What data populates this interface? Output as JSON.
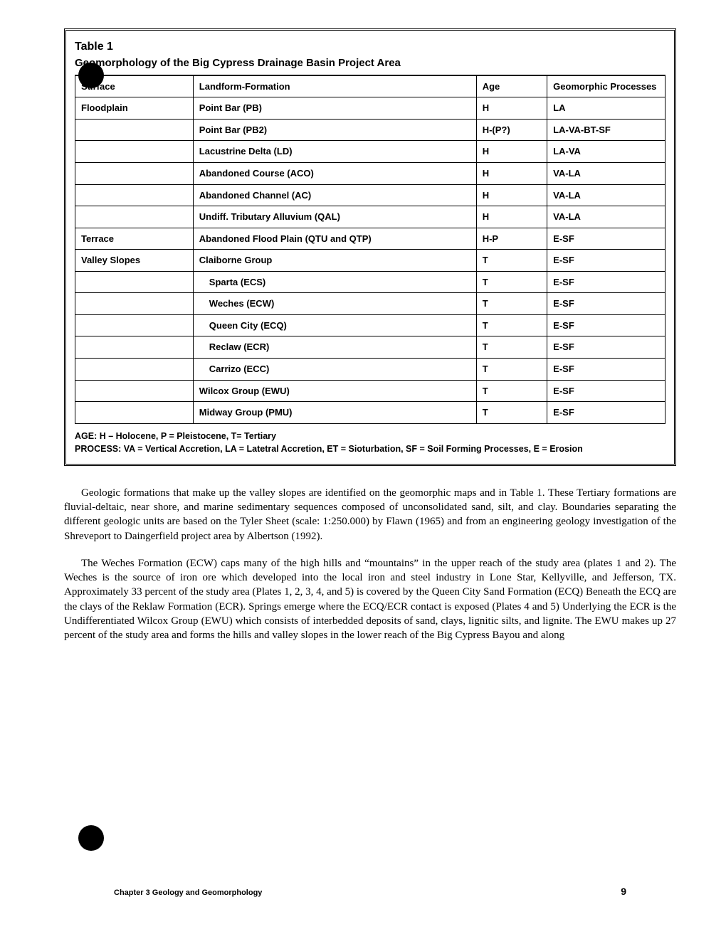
{
  "table": {
    "title": "Table 1",
    "subtitle": "Geomorphology of the Big Cypress Drainage Basin Project Area",
    "headers": {
      "surface": "Surface",
      "lf": "Landform-Formation",
      "age": "Age",
      "proc": "Geomorphic Processes"
    },
    "rows": [
      {
        "surface": "Floodplain",
        "lf": "Point Bar (PB)",
        "age": "H",
        "proc": "LA",
        "indent": false
      },
      {
        "surface": "",
        "lf": "Point Bar  (PB2)",
        "age": "H-(P?)",
        "proc": "LA-VA-BT-SF",
        "indent": false
      },
      {
        "surface": "",
        "lf": "Lacustrine Delta (LD)",
        "age": "H",
        "proc": "LA-VA",
        "indent": false
      },
      {
        "surface": "",
        "lf": "Abandoned Course (ACO)",
        "age": "H",
        "proc": "VA-LA",
        "indent": false
      },
      {
        "surface": "",
        "lf": "Abandoned Channel (AC)",
        "age": "H",
        "proc": "VA-LA",
        "indent": false
      },
      {
        "surface": "",
        "lf": "Undiff. Tributary Alluvium (QAL)",
        "age": "H",
        "proc": "VA-LA",
        "indent": false
      },
      {
        "surface": "Terrace",
        "lf": "Abandoned Flood Plain (QTU and QTP)",
        "age": "H-P",
        "proc": "E-SF",
        "indent": false
      },
      {
        "surface": "Valley Slopes",
        "lf": "Claiborne Group",
        "age": "T",
        "proc": "E-SF",
        "indent": false
      },
      {
        "surface": "",
        "lf": "Sparta (ECS)",
        "age": "T",
        "proc": "E-SF",
        "indent": true
      },
      {
        "surface": "",
        "lf": "Weches (ECW)",
        "age": "T",
        "proc": "E-SF",
        "indent": true
      },
      {
        "surface": "",
        "lf": "Queen City (ECQ)",
        "age": "T",
        "proc": "E-SF",
        "indent": true
      },
      {
        "surface": "",
        "lf": "Reclaw (ECR)",
        "age": "T",
        "proc": "E-SF",
        "indent": true
      },
      {
        "surface": "",
        "lf": "Carrizo (ECC)",
        "age": "T",
        "proc": "E-SF",
        "indent": true
      },
      {
        "surface": "",
        "lf": "Wilcox Group (EWU)",
        "age": "T",
        "proc": "E-SF",
        "indent": false
      },
      {
        "surface": "",
        "lf": "Midway Group (PMU)",
        "age": "T",
        "proc": "E-SF",
        "indent": false
      }
    ],
    "footnote_l1": "AGE: H – Holocene, P = Pleistocene, T= Tertiary",
    "footnote_l2": "PROCESS: VA = Vertical Accretion, LA = Latetral Accretion, ET = Sioturbation, SF = Soil Forming Processes, E = Erosion"
  },
  "para1": "Geologic formations that make up the valley slopes are identified on the geomorphic maps and in Table 1. These Tertiary formations are fluvial-deltaic, near shore, and marine sedimentary sequences composed of unconsol­idated sand, silt, and clay. Boundaries separating the different geologic units are based on the Tyler Sheet (scale: 1:250.000) by Flawn (1965) and from an engineering geology investigation of the Shreveport to Daingerfield project area by Albertson (1992).",
  "para2": "The Weches Formation (ECW) caps many of the high hills and “mountains” in the upper reach of the study area (plates 1 and 2). The Weches is the source of iron ore which developed into the local iron and steel industry in Lone Star, Kellyville, and Jefferson, TX.  Approximately 33 percent of the study area (Plates 1, 2, 3, 4, and 5) is covered by the Queen City Sand For­mation (ECQ)   Beneath the ECQ are the clays of the Reklaw Formation (ECR). Springs emerge where the ECQ/ECR contact is exposed (Plates 4 and 5)   Underlying the ECR is the Undifferentiated Wilcox Group (EWU) which consists of interbedded deposits of sand, clays, lignitic silts, and lignite. The EWU makes up 27 percent of the study area and forms the hills and valley slopes in the lower reach of the Big Cypress Bayou and along",
  "footer": "Chapter 3 Geology and Geomorphology",
  "page": "9"
}
